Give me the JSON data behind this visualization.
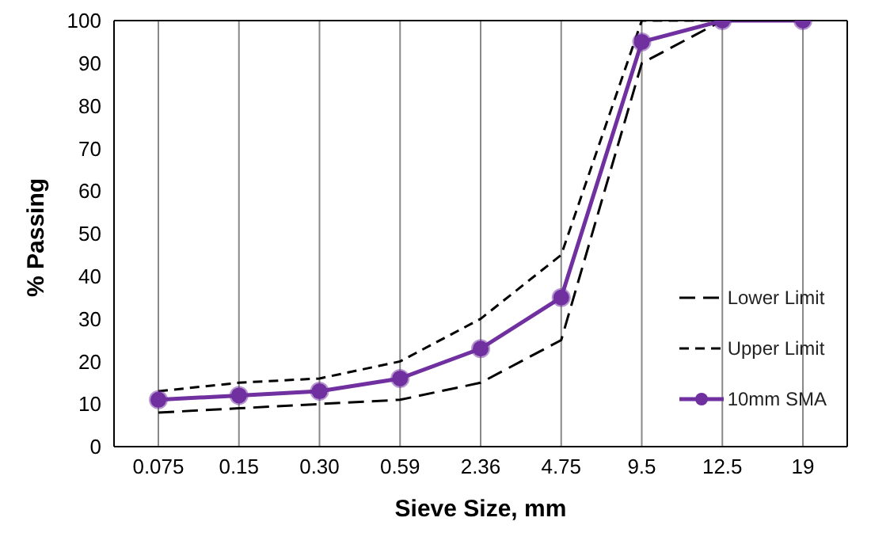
{
  "chart_data": {
    "type": "line",
    "xlabel": "Sieve Size, mm",
    "ylabel": "% Passing",
    "categories": [
      "0.075",
      "0.15",
      "0.30",
      "0.59",
      "2.36",
      "4.75",
      "9.5",
      "12.5",
      "19"
    ],
    "series": [
      {
        "name": "Lower Limit",
        "color": "#000000",
        "line_style": "dashed",
        "marker": "none",
        "values": [
          8,
          9,
          10,
          11,
          15,
          25,
          90,
          100,
          null
        ]
      },
      {
        "name": "Upper Limit",
        "color": "#000000",
        "line_style": "dashed",
        "marker": "none",
        "values": [
          13,
          15,
          16,
          20,
          30,
          45,
          100,
          100,
          null
        ]
      },
      {
        "name": "10mm SMA",
        "color": "#7030a0",
        "line_style": "solid",
        "marker": "circle",
        "values": [
          11,
          12,
          13,
          16,
          23,
          35,
          95,
          100,
          100
        ]
      }
    ],
    "ylim": [
      0,
      100
    ],
    "yticks": [
      0,
      10,
      20,
      30,
      40,
      50,
      60,
      70,
      80,
      90,
      100
    ],
    "grid": "x",
    "legend": "bottom right"
  }
}
